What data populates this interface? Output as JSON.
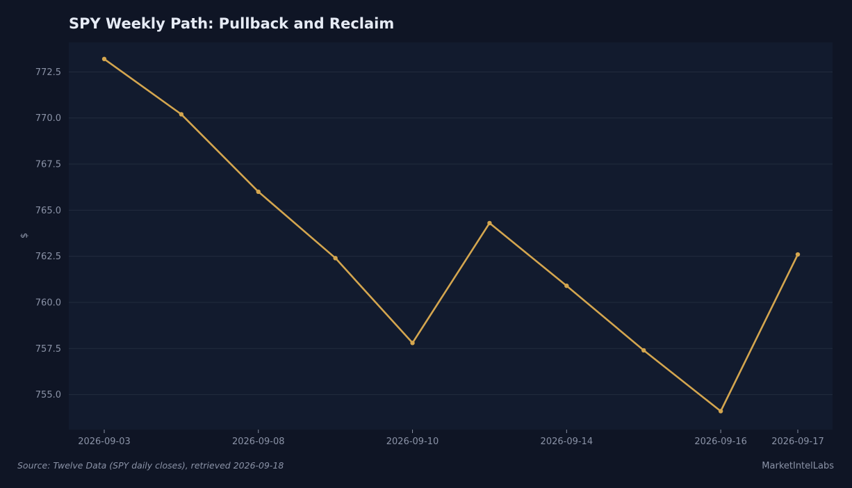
{
  "chart_data": {
    "type": "line",
    "title": "SPY Weekly Path: Pullback and Reclaim",
    "xlabel": "",
    "ylabel": "$",
    "x": [
      "2026-09-03",
      "2026-09-04",
      "2026-09-08",
      "2026-09-09",
      "2026-09-10",
      "2026-09-11",
      "2026-09-14",
      "2026-09-15",
      "2026-09-16",
      "2026-09-17"
    ],
    "x_tick_labels": [
      "2026-09-03",
      "2026-09-08",
      "2026-09-10",
      "2026-09-14",
      "2026-09-16",
      "2026-09-17"
    ],
    "y_ticks": [
      "755.0",
      "757.5",
      "760.0",
      "762.5",
      "765.0",
      "767.5",
      "770.0",
      "772.5"
    ],
    "ylim": [
      753.1,
      774.1
    ],
    "grid": true,
    "series": [
      {
        "values": [
          773.2,
          770.2,
          766.0,
          762.4,
          757.8,
          764.3,
          760.9,
          757.4,
          754.1,
          762.6
        ],
        "color": "#d4a64f"
      }
    ]
  },
  "footer": {
    "source": "Source: Twelve Data (SPY daily closes), retrieved 2026-09-18",
    "brand": "MarketIntelLabs"
  },
  "colors": {
    "background": "#0f1525",
    "plot_background": "#121b2e",
    "grid": "#232c3e",
    "line": "#d4a64f",
    "text": "#8b93a7",
    "title": "#e6ebf5"
  }
}
